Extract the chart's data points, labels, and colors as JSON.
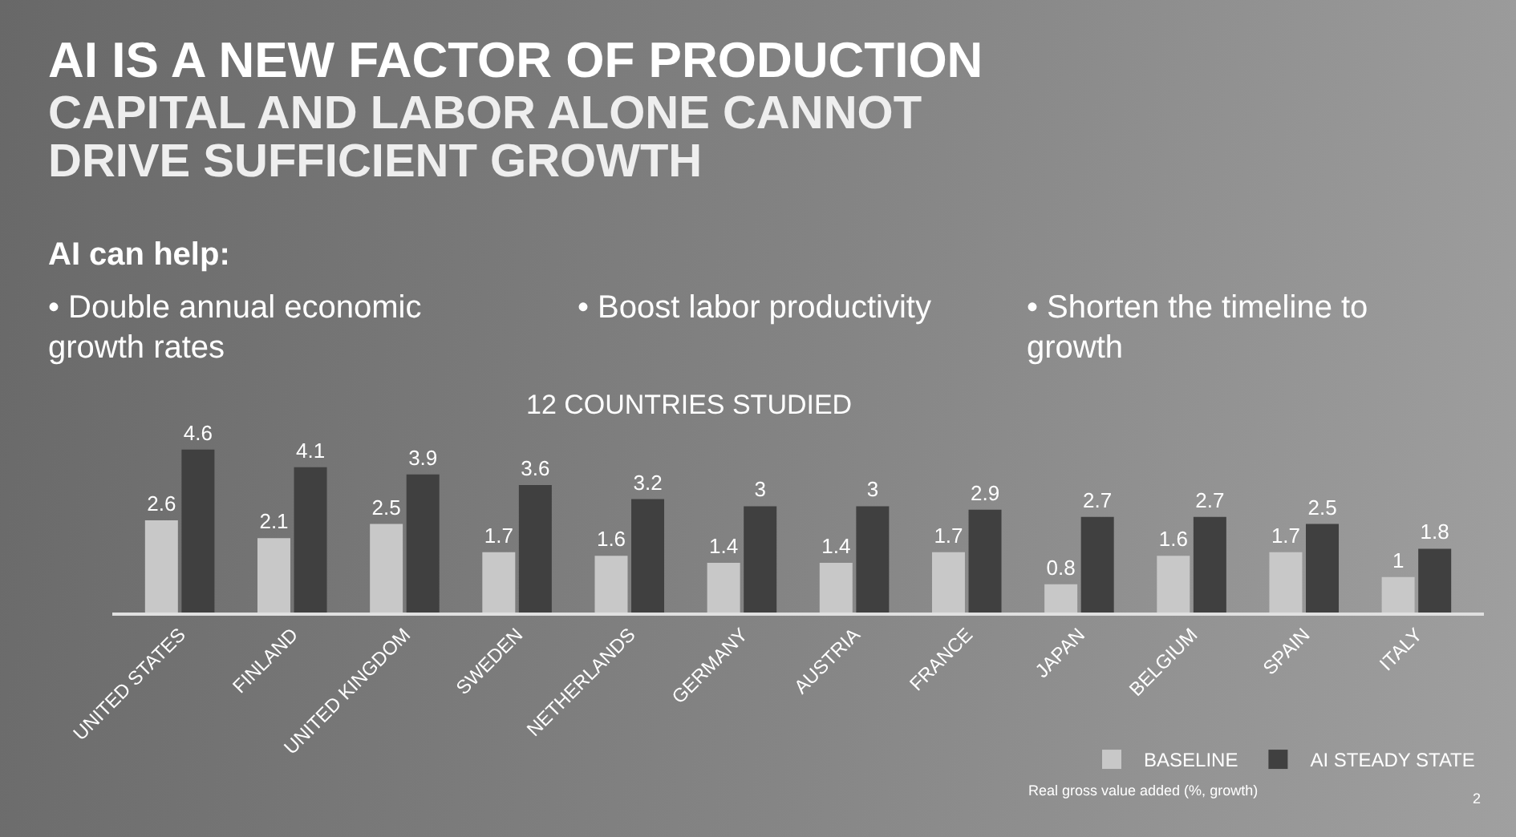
{
  "chart_data": {
    "type": "bar",
    "title": "AI IS A NEW FACTOR OF PRODUCTION",
    "subtitle": "CAPITAL AND LABOR ALONE CANNOT DRIVE SUFFICIENT GROWTH",
    "annotations": [
      "AI can help:",
      "• Double annual economic growth rates",
      "• Boost labor productivity",
      "• Shorten the timeline to growth",
      "12 COUNTRIES STUDIED",
      "Real gross value added (%, growth)",
      "2"
    ],
    "categories": [
      "UNITED STATES",
      "FINLAND",
      "UNITED KINGDOM",
      "SWEDEN",
      "NETHERLANDS",
      "GERMANY",
      "AUSTRIA",
      "FRANCE",
      "JAPAN",
      "BELGIUM",
      "SPAIN",
      "ITALY"
    ],
    "series": [
      {
        "name": "BASELINE",
        "color": "#c8c8c8",
        "values": [
          2.6,
          2.1,
          2.5,
          1.7,
          1.6,
          1.4,
          1.4,
          1.7,
          0.8,
          1.6,
          1.7,
          1
        ]
      },
      {
        "name": "AI STEADY STATE",
        "color": "#404040",
        "values": [
          4.6,
          4.1,
          3.9,
          3.6,
          3.2,
          3,
          3,
          2.9,
          2.7,
          2.7,
          2.5,
          1.8
        ]
      }
    ],
    "data_labels": true,
    "legend": "bottom right",
    "tick_labels": "x",
    "grid": false
  }
}
